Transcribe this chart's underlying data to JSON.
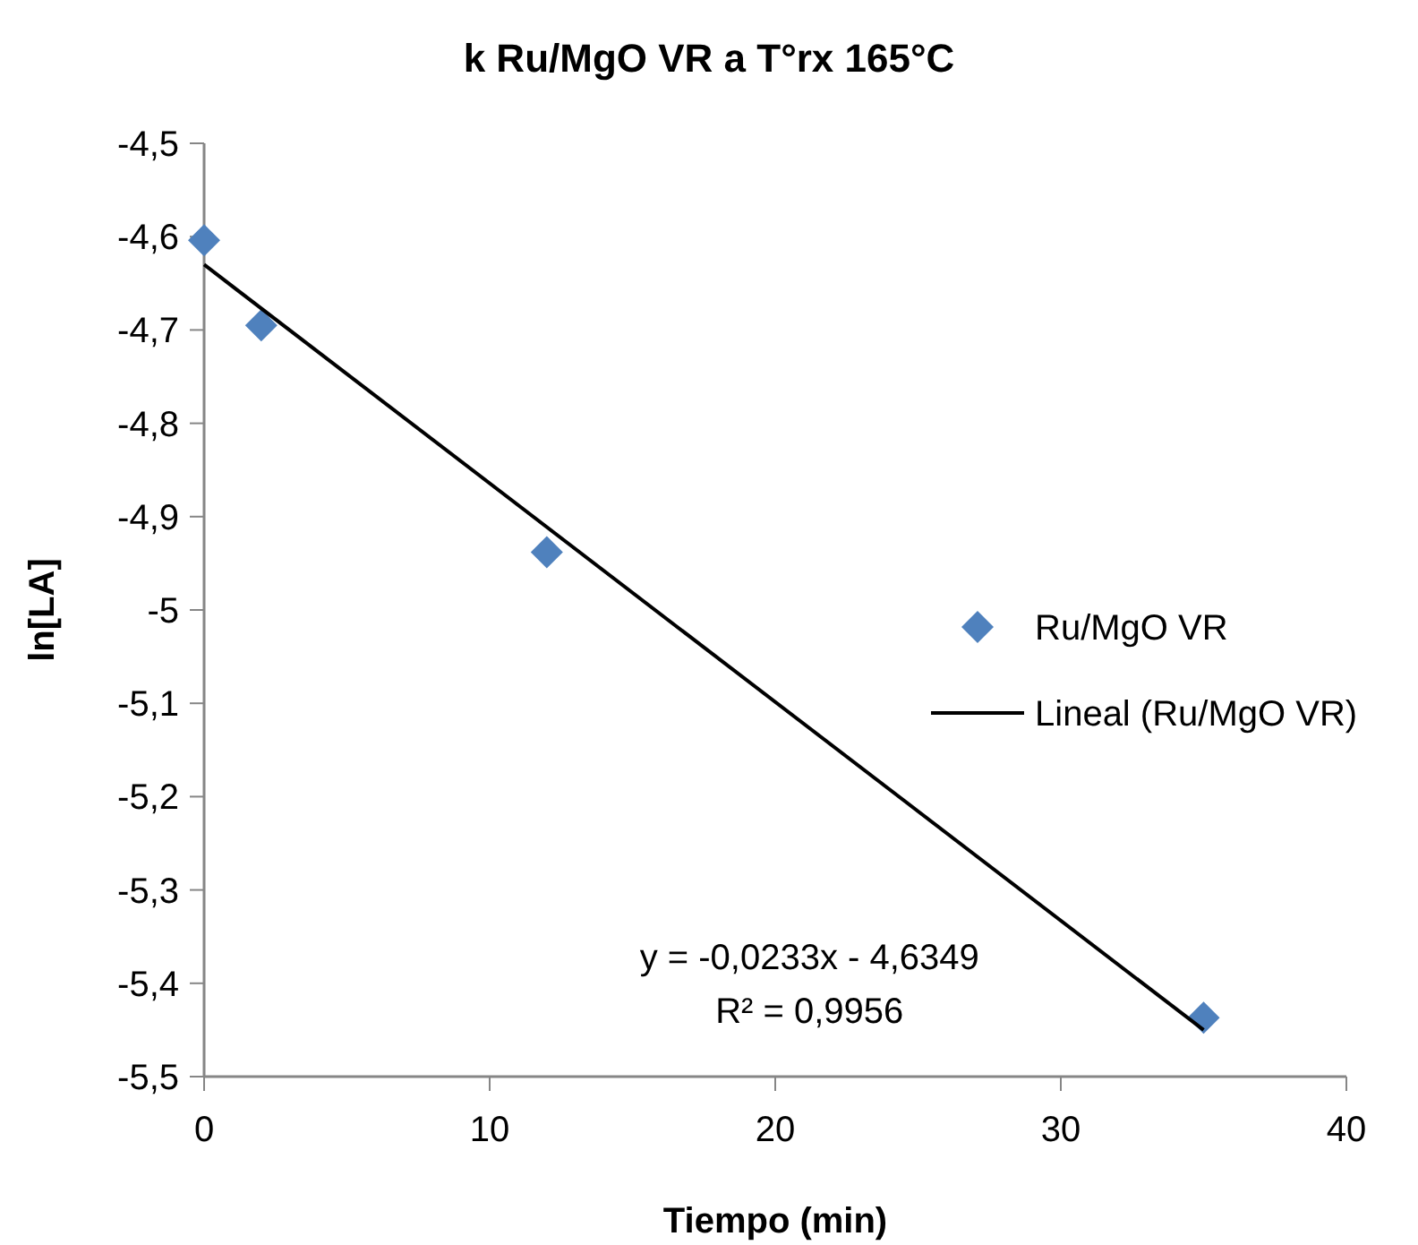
{
  "chart_data": {
    "type": "scatter",
    "title": "k Ru/MgO VR a T°rx 165°C",
    "xlabel": "Tiempo (min)",
    "ylabel": "ln[LA]",
    "xlim": [
      0,
      40
    ],
    "xticks": [
      0,
      10,
      20,
      30,
      40
    ],
    "ylim": [
      -5.5,
      -4.5
    ],
    "yticks": [
      {
        "value": -5.5,
        "label": "-5,5"
      },
      {
        "value": -5.4,
        "label": "-5,4"
      },
      {
        "value": -5.3,
        "label": "-5,3"
      },
      {
        "value": -5.2,
        "label": "-5,2"
      },
      {
        "value": -5.1,
        "label": "-5,1"
      },
      {
        "value": -5,
        "label": "-5"
      },
      {
        "value": -4.9,
        "label": "-4,9"
      },
      {
        "value": -4.8,
        "label": "-4,8"
      },
      {
        "value": -4.7,
        "label": "-4,7"
      },
      {
        "value": -4.6,
        "label": "-4,6"
      },
      {
        "value": -4.5,
        "label": "-4,5"
      }
    ],
    "series": [
      {
        "name": "Ru/MgO VR",
        "marker": "diamond",
        "color": "#4f81bd",
        "x": [
          0,
          2,
          12,
          35
        ],
        "values": [
          -4.604,
          -4.695,
          -4.938,
          -5.437
        ]
      },
      {
        "name": "Lineal (Ru/MgO VR)",
        "type": "line",
        "color": "#000000",
        "x": [
          0,
          35
        ],
        "values": [
          -4.63,
          -5.45
        ]
      }
    ],
    "annotations": [
      "y = -0,0233x - 4,6349",
      "R² = 0,9956"
    ],
    "line_style": "solid",
    "grid": false,
    "legend": "right"
  }
}
